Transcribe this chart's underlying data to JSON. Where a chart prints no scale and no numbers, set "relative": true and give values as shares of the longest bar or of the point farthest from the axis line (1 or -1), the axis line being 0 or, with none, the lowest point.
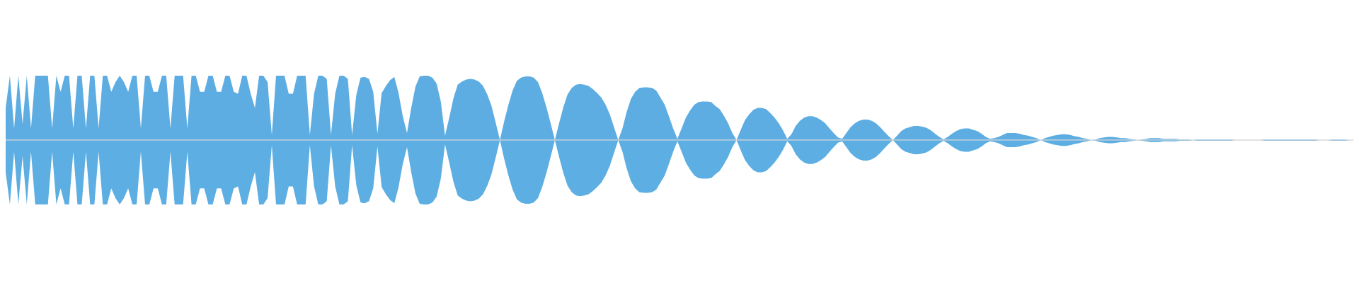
{
  "chart_data": {
    "type": "area",
    "relative": true,
    "categories": [
      null,
      null,
      null,
      null,
      null,
      null,
      null,
      null,
      null,
      null,
      null,
      null,
      null,
      null,
      null,
      null,
      null,
      null,
      null,
      null,
      null,
      null,
      null,
      null,
      null,
      null,
      null,
      null,
      null,
      null,
      null,
      null,
      null,
      null,
      null,
      null,
      null,
      null,
      null,
      null,
      null,
      null,
      null,
      null,
      null,
      null,
      null,
      null,
      null,
      null,
      null,
      null,
      null,
      null,
      null,
      null,
      null,
      null,
      null,
      null,
      null,
      null,
      null,
      null,
      null,
      null,
      null,
      null,
      null,
      null,
      null,
      null,
      null,
      null,
      null,
      null,
      null,
      null,
      null,
      null,
      null,
      null,
      null,
      null,
      null,
      null,
      null,
      null,
      null,
      null,
      null,
      null,
      null,
      null,
      null,
      null,
      null,
      null,
      null,
      null,
      null,
      null,
      null,
      null,
      null,
      null,
      null,
      null,
      null,
      null,
      null,
      null,
      null,
      null,
      null,
      null,
      null,
      null,
      null,
      null,
      null,
      null,
      null,
      null,
      null,
      null,
      null,
      null,
      null,
      null,
      null,
      null,
      null,
      null,
      null,
      null,
      null,
      null,
      null,
      null,
      null,
      null,
      null,
      null,
      null,
      null,
      null,
      null,
      null,
      null,
      null,
      null,
      null,
      null,
      null,
      null,
      null,
      null,
      null,
      null,
      null,
      null,
      null,
      null,
      null,
      null,
      null,
      null,
      null,
      null,
      null,
      null,
      null,
      null,
      null,
      null,
      null,
      null,
      null,
      null,
      null,
      null,
      null,
      null,
      null,
      null,
      null,
      null,
      null,
      null,
      null,
      null,
      null,
      null,
      null,
      null,
      null,
      null,
      null,
      null,
      null,
      null,
      null,
      null,
      null,
      null,
      null,
      null,
      null,
      null,
      null,
      null,
      null,
      null,
      null,
      null,
      null,
      null,
      null,
      null,
      null,
      null,
      null,
      null,
      null,
      null,
      null,
      null,
      null,
      null,
      null,
      null,
      null,
      null,
      null,
      null,
      null,
      null,
      null,
      null,
      null,
      null,
      null,
      null,
      null,
      null,
      null,
      null,
      null,
      null,
      null,
      null,
      null,
      null,
      null,
      null,
      null,
      null,
      null,
      null,
      null,
      null,
      null,
      null,
      null,
      null,
      null,
      null,
      null,
      null,
      null,
      null,
      null,
      null,
      null,
      null,
      null,
      null,
      null,
      null,
      null,
      null,
      null,
      null,
      null,
      null,
      null,
      null,
      null,
      null,
      null,
      null,
      null,
      null,
      null,
      null,
      null,
      null,
      null,
      null,
      null,
      null,
      null,
      null,
      null,
      null,
      null,
      null,
      null,
      null,
      null,
      null,
      null,
      null,
      null,
      null,
      null,
      null,
      null,
      null
    ],
    "series": [
      {
        "color": "#5dade2",
        "values": [
          0.5,
          1,
          0.18,
          1,
          0.25,
          1,
          0.18,
          1,
          1,
          1,
          1,
          0.18,
          1,
          0.75,
          1,
          1,
          0.18,
          1,
          1,
          0.18,
          1,
          1,
          0.18,
          1,
          1,
          0.75,
          0.9,
          1,
          0.9,
          0.75,
          1,
          1,
          0.18,
          1,
          1,
          0.75,
          0.75,
          1,
          1,
          0.18,
          1,
          1,
          1,
          0.18,
          1,
          1,
          0.75,
          0.75,
          1,
          1,
          0.75,
          0.75,
          1,
          1,
          0.75,
          0.72,
          1,
          1,
          0.72,
          0.5,
          1,
          1,
          0.9,
          0.08,
          1,
          1,
          1,
          0.72,
          0.72,
          1,
          1,
          1,
          0.08,
          0.72,
          1,
          1,
          0.95,
          0.08,
          0.72,
          1,
          1,
          0.95,
          0.08,
          0.7,
          0.97,
          0.98,
          0.95,
          0.75,
          0.1,
          0.73,
          0.84,
          0.93,
          0.98,
          0.73,
          0.37,
          0.11,
          0.5,
          0.83,
          0.99,
          1,
          1,
          0.97,
          0.88,
          0.6,
          0.07,
          0.35,
          0.65,
          0.86,
          0.91,
          0.94,
          0.95,
          0.94,
          0.91,
          0.84,
          0.71,
          0.53,
          0.27,
          0,
          0.29,
          0.55,
          0.77,
          0.92,
          0.97,
          0.99,
          0.99,
          0.97,
          0.9,
          0.73,
          0.51,
          0.26,
          0,
          0.26,
          0.51,
          0.71,
          0.81,
          0.86,
          0.87,
          0.86,
          0.84,
          0.79,
          0.73,
          0.66,
          0.55,
          0.4,
          0.2,
          0,
          0.18,
          0.44,
          0.64,
          0.75,
          0.81,
          0.82,
          0.82,
          0.81,
          0.77,
          0.66,
          0.55,
          0.37,
          0.18,
          0.02,
          0.18,
          0.35,
          0.46,
          0.55,
          0.59,
          0.6,
          0.6,
          0.59,
          0.53,
          0.48,
          0.38,
          0.26,
          0.11,
          0,
          0.16,
          0.31,
          0.4,
          0.47,
          0.5,
          0.5,
          0.48,
          0.42,
          0.35,
          0.26,
          0.15,
          0.02,
          0.09,
          0.22,
          0.3,
          0.35,
          0.37,
          0.37,
          0.35,
          0.31,
          0.26,
          0.18,
          0.11,
          0.04,
          0.02,
          0.11,
          0.2,
          0.26,
          0.3,
          0.32,
          0.32,
          0.3,
          0.26,
          0.2,
          0.13,
          0.06,
          0,
          0.07,
          0.14,
          0.18,
          0.2,
          0.22,
          0.22,
          0.21,
          0.19,
          0.15,
          0.1,
          0.05,
          0.01,
          0.05,
          0.1,
          0.14,
          0.17,
          0.18,
          0.18,
          0.16,
          0.14,
          0.1,
          0.05,
          0.02,
          0.03,
          0.05,
          0.08,
          0.11,
          0.11,
          0.11,
          0.1,
          0.08,
          0.07,
          0.05,
          0.03,
          0,
          0.03,
          0.05,
          0.07,
          0.08,
          0.09,
          0.09,
          0.08,
          0.06,
          0.05,
          0.03,
          0.02,
          0,
          0.01,
          0.03,
          0.04,
          0.05,
          0.05,
          0.04,
          0.03,
          0.03,
          0.02,
          0.01,
          0,
          0.01,
          0.02,
          0.03,
          0.03,
          0.03,
          0.02,
          0.02,
          0.02,
          0.02,
          0.01,
          0.01,
          0.01,
          0,
          0.01,
          0.01,
          0.01,
          0.01,
          0.01,
          0.01,
          0.01,
          0.01,
          0.01,
          0,
          0,
          0,
          0,
          0,
          0,
          0,
          0.01,
          0.01,
          0.01,
          0.01,
          0.01,
          0.01,
          0.01,
          0.01,
          0.01,
          0.01,
          0.01,
          0.01,
          0.01,
          0,
          0,
          0,
          0.01,
          0.01,
          0.01,
          0.01,
          0,
          0
        ]
      },
      {
        "color": "#5daee2",
        "values": [
          -0.5,
          -1,
          -0.18,
          -1,
          -0.25,
          -1,
          -0.18,
          -1,
          -1,
          -1,
          -1,
          -0.18,
          -1,
          -0.75,
          -1,
          -1,
          -0.18,
          -1,
          -1,
          -0.18,
          -1,
          -1,
          -0.18,
          -1,
          -1,
          -0.75,
          -0.9,
          -1,
          -0.9,
          -0.75,
          -1,
          -1,
          -0.18,
          -1,
          -1,
          -0.75,
          -0.75,
          -1,
          -1,
          -0.18,
          -1,
          -1,
          -1,
          -0.18,
          -1,
          -1,
          -0.75,
          -0.75,
          -1,
          -1,
          -0.75,
          -0.75,
          -1,
          -1,
          -0.75,
          -0.72,
          -1,
          -1,
          -0.72,
          -0.5,
          -1,
          -1,
          -0.9,
          -0.08,
          -1,
          -1,
          -1,
          -0.72,
          -0.72,
          -1,
          -1,
          -1,
          -0.08,
          -0.72,
          -1,
          -1,
          -0.95,
          -0.08,
          -0.72,
          -1,
          -1,
          -0.95,
          -0.08,
          -0.7,
          -0.97,
          -0.98,
          -0.95,
          -0.75,
          -0.1,
          -0.73,
          -0.84,
          -0.93,
          -0.98,
          -0.73,
          -0.37,
          -0.11,
          -0.5,
          -0.83,
          -0.99,
          -1,
          -1,
          -0.97,
          -0.88,
          -0.6,
          -0.07,
          -0.35,
          -0.65,
          -0.86,
          -0.91,
          -0.94,
          -0.95,
          -0.94,
          -0.91,
          -0.84,
          -0.71,
          -0.53,
          -0.27,
          0,
          -0.29,
          -0.55,
          -0.77,
          -0.92,
          -0.97,
          -0.99,
          -0.99,
          -0.97,
          -0.9,
          -0.73,
          -0.51,
          -0.26,
          0,
          -0.26,
          -0.51,
          -0.71,
          -0.81,
          -0.86,
          -0.87,
          -0.86,
          -0.84,
          -0.79,
          -0.73,
          -0.66,
          -0.55,
          -0.4,
          -0.2,
          0,
          -0.18,
          -0.44,
          -0.64,
          -0.75,
          -0.81,
          -0.82,
          -0.82,
          -0.81,
          -0.77,
          -0.66,
          -0.55,
          -0.37,
          -0.18,
          -0.02,
          -0.18,
          -0.35,
          -0.46,
          -0.55,
          -0.59,
          -0.6,
          -0.6,
          -0.59,
          -0.53,
          -0.48,
          -0.38,
          -0.26,
          -0.11,
          0,
          -0.16,
          -0.31,
          -0.4,
          -0.47,
          -0.5,
          -0.5,
          -0.48,
          -0.42,
          -0.35,
          -0.26,
          -0.15,
          -0.02,
          -0.09,
          -0.22,
          -0.3,
          -0.35,
          -0.37,
          -0.37,
          -0.35,
          -0.31,
          -0.26,
          -0.18,
          -0.11,
          -0.04,
          -0.02,
          -0.11,
          -0.2,
          -0.26,
          -0.3,
          -0.32,
          -0.32,
          -0.3,
          -0.26,
          -0.2,
          -0.13,
          -0.06,
          0,
          -0.07,
          -0.14,
          -0.18,
          -0.2,
          -0.22,
          -0.22,
          -0.21,
          -0.19,
          -0.15,
          -0.1,
          -0.05,
          -0.01,
          -0.05,
          -0.1,
          -0.14,
          -0.17,
          -0.18,
          -0.18,
          -0.16,
          -0.14,
          -0.1,
          -0.05,
          -0.02,
          -0.03,
          -0.05,
          -0.08,
          -0.11,
          -0.11,
          -0.11,
          -0.1,
          -0.08,
          -0.07,
          -0.05,
          -0.03,
          0,
          -0.03,
          -0.05,
          -0.07,
          -0.08,
          -0.09,
          -0.09,
          -0.08,
          -0.06,
          -0.05,
          -0.03,
          -0.02,
          0,
          -0.01,
          -0.03,
          -0.04,
          -0.05,
          -0.05,
          -0.04,
          -0.03,
          -0.03,
          -0.02,
          -0.01,
          0,
          -0.01,
          -0.02,
          -0.03,
          -0.03,
          -0.03,
          -0.02,
          -0.02,
          -0.02,
          -0.02,
          -0.01,
          -0.01,
          -0.01,
          0,
          -0.01,
          -0.01,
          -0.01,
          -0.01,
          -0.01,
          -0.01,
          -0.01,
          -0.01,
          -0.01,
          0,
          0,
          0,
          0,
          0,
          0,
          0,
          -0.01,
          -0.01,
          -0.01,
          -0.01,
          -0.01,
          -0.01,
          -0.01,
          -0.01,
          -0.01,
          -0.01,
          -0.01,
          -0.01,
          -0.01,
          0,
          0,
          0,
          -0.01,
          -0.01,
          -0.01,
          -0.01,
          0,
          0
        ]
      }
    ]
  }
}
